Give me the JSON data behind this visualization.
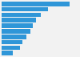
{
  "values": [
    255,
    175,
    148,
    130,
    118,
    108,
    93,
    78,
    68,
    42
  ],
  "bar_color": "#2f96d8",
  "background_color": "#f2f2f2",
  "bar_height": 0.82,
  "xlim": [
    0,
    285
  ],
  "n_bars": 10
}
